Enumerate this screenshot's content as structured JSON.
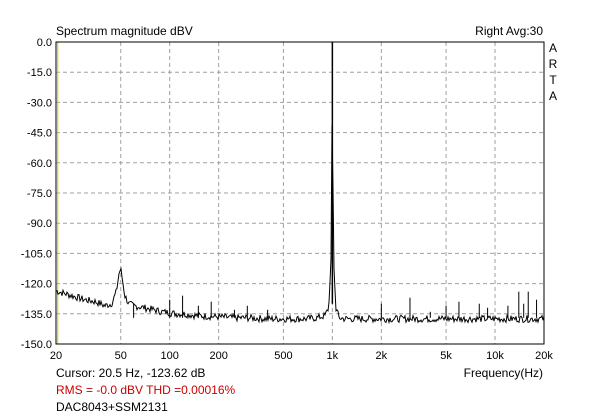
{
  "header": {
    "title": "Spectrum magnitude dBV",
    "channel_avg": "Right  Avg:30",
    "brand_letters": [
      "A",
      "R",
      "T",
      "A"
    ]
  },
  "footer": {
    "cursor": "Cursor:   20.5 Hz, -123.62 dB",
    "frequency_label": "Frequency(Hz)",
    "rms_thd": "RMS =   -0.0 dBV   THD =0.00016%",
    "device": "DAC8043+SSM2131"
  },
  "colors": {
    "trace": "#000000",
    "grid": "#a0a0a0",
    "cursor_line": "#c8c800",
    "red_text": "#cc0000"
  },
  "chart_data": {
    "type": "line",
    "title": "Spectrum magnitude dBV",
    "xlabel": "Frequency(Hz)",
    "ylabel": "",
    "xscale": "log",
    "xlim": [
      20,
      20000
    ],
    "ylim": [
      -150,
      0
    ],
    "grid": true,
    "x_ticks": [
      20,
      50,
      100,
      200,
      500,
      1000,
      2000,
      5000,
      10000,
      20000
    ],
    "x_tick_labels": [
      "20",
      "50",
      "100",
      "200",
      "500",
      "1k",
      "2k",
      "5k",
      "10k",
      "20k"
    ],
    "y_ticks": [
      0,
      -15,
      -30,
      -45,
      -60,
      -75,
      -90,
      -105,
      -120,
      -135,
      -150
    ],
    "y_tick_labels": [
      "0.0",
      "-15.0",
      "-30.0",
      "-45.0",
      "-60.0",
      "-75.0",
      "-90.0",
      "-105.0",
      "-120.0",
      "-135.0",
      "-150.0"
    ],
    "cursor_x": 20.5,
    "series": [
      {
        "x": [
          20,
          25,
          30,
          35,
          40,
          44,
          47,
          49,
          50,
          51,
          53,
          56,
          60,
          70,
          80,
          90,
          100,
          110,
          120,
          150,
          200,
          250,
          300,
          400,
          500,
          600,
          700,
          800,
          900,
          950,
          980,
          990,
          1000,
          1010,
          1020,
          1050,
          1100,
          1200,
          1500,
          2000,
          3000,
          5000,
          7000,
          10000,
          12000,
          14000,
          16000,
          20000
        ],
        "y": [
          -123.6,
          -126,
          -128,
          -129,
          -131,
          -130,
          -124,
          -114,
          -113,
          -117,
          -126,
          -130,
          -131,
          -132,
          -133,
          -134,
          -134.5,
          -135,
          -135,
          -136,
          -136.5,
          -137,
          -137,
          -137.5,
          -137.5,
          -137.5,
          -137.5,
          -137,
          -136,
          -132,
          -110,
          -80,
          0,
          -80,
          -110,
          -132,
          -137,
          -137.5,
          -137.5,
          -137.5,
          -137.5,
          -137.5,
          -137.5,
          -137.5,
          -137.5,
          -137.5,
          -137.5,
          -137.5
        ]
      }
    ],
    "spurs": [
      {
        "x": 60,
        "y": -130
      },
      {
        "x": 100,
        "y": -128
      },
      {
        "x": 120,
        "y": -126
      },
      {
        "x": 150,
        "y": -131
      },
      {
        "x": 180,
        "y": -129
      },
      {
        "x": 250,
        "y": -133
      },
      {
        "x": 300,
        "y": -131
      },
      {
        "x": 400,
        "y": -133
      },
      {
        "x": 2000,
        "y": -130
      },
      {
        "x": 3000,
        "y": -127
      },
      {
        "x": 4000,
        "y": -134
      },
      {
        "x": 5000,
        "y": -131
      },
      {
        "x": 6000,
        "y": -129
      },
      {
        "x": 8000,
        "y": -130
      },
      {
        "x": 9000,
        "y": -132
      },
      {
        "x": 12000,
        "y": -131
      },
      {
        "x": 14000,
        "y": -124
      },
      {
        "x": 15000,
        "y": -130
      },
      {
        "x": 16000,
        "y": -124
      },
      {
        "x": 18000,
        "y": -128
      }
    ]
  }
}
